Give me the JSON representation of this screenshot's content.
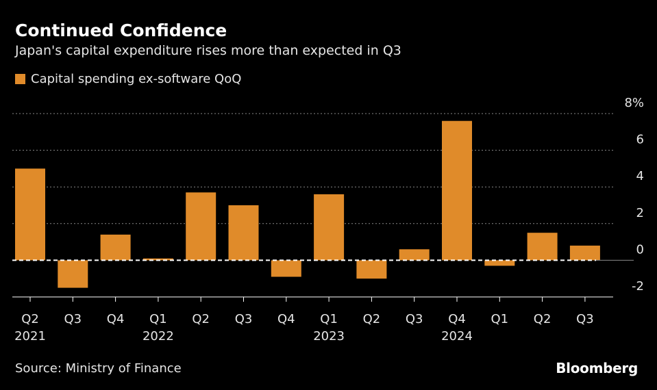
{
  "header": {
    "title": "Continued Confidence",
    "subtitle": "Japan's capital expenditure rises more than expected in Q3"
  },
  "footer": {
    "source": "Source: Ministry of Finance",
    "brand": "Bloomberg"
  },
  "colors": {
    "bar": "#E08B2A",
    "grid": "#8a8a8a",
    "axis": "#ffffff",
    "background": "#000000"
  },
  "chart_data": {
    "type": "bar",
    "title": "Continued Confidence",
    "subtitle": "Japan's capital expenditure rises more than expected in Q3",
    "xlabel": "",
    "ylabel": "",
    "legend": [
      "Capital spending ex-software QoQ"
    ],
    "legend_position": "top-left",
    "ylim": [
      -2,
      8
    ],
    "yticks": [
      8,
      6,
      4,
      2,
      0,
      -2
    ],
    "ytick_labels": [
      "8%",
      "6",
      "4",
      "2",
      "0",
      "-2"
    ],
    "grid": true,
    "categories": [
      "Q2",
      "Q3",
      "Q4",
      "Q1",
      "Q2",
      "Q3",
      "Q4",
      "Q1",
      "Q2",
      "Q3",
      "Q4",
      "Q1",
      "Q2",
      "Q3"
    ],
    "year_labels": [
      "2021",
      "",
      "",
      "2022",
      "",
      "",
      "",
      "2023",
      "",
      "",
      "2024",
      "",
      "",
      ""
    ],
    "series": [
      {
        "name": "Capital spending ex-software QoQ",
        "values": [
          5.0,
          -1.5,
          1.4,
          0.1,
          3.7,
          3.0,
          -0.9,
          3.6,
          -1.0,
          0.6,
          7.6,
          -0.3,
          1.5,
          0.8
        ]
      }
    ]
  }
}
